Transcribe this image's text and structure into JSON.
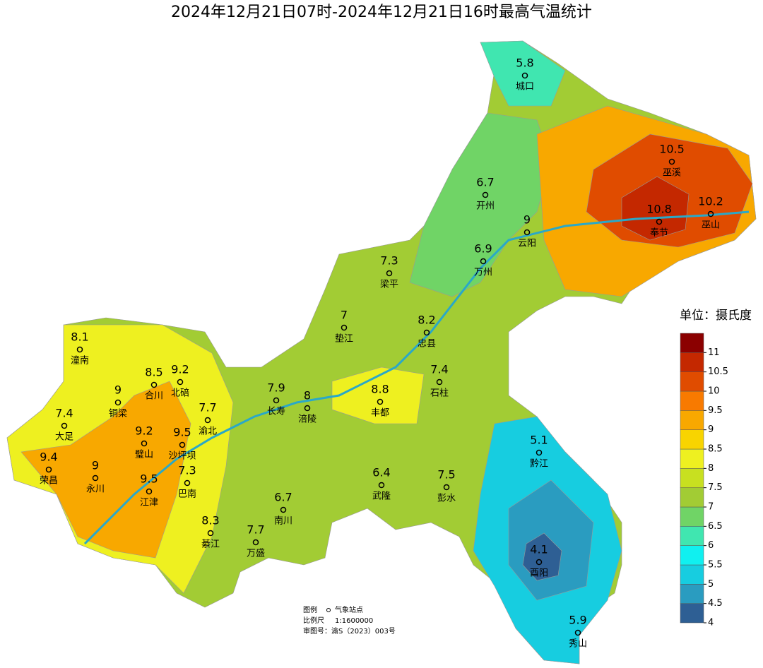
{
  "title": "2024年12月21日07时-2024年12月21日16时最高气温统计",
  "stations": [
    {
      "name": "城口",
      "value": 5.8
    },
    {
      "name": "巫溪",
      "value": 10.5
    },
    {
      "name": "开州",
      "value": 6.7
    },
    {
      "name": "云阳",
      "value": 9
    },
    {
      "name": "奉节",
      "value": 10.8
    },
    {
      "name": "巫山",
      "value": 10.2
    },
    {
      "name": "万州",
      "value": 6.9
    },
    {
      "name": "梁平",
      "value": 7.3
    },
    {
      "name": "垫江",
      "value": 7
    },
    {
      "name": "忠县",
      "value": 8.2
    },
    {
      "name": "潼南",
      "value": 8.1
    },
    {
      "name": "合川",
      "value": 8.5
    },
    {
      "name": "石柱",
      "value": 7.4
    },
    {
      "name": "北碚",
      "value": 9.2
    },
    {
      "name": "铜梁",
      "value": 9
    },
    {
      "name": "长寿",
      "value": 7.9
    },
    {
      "name": "渝北",
      "value": 7.7
    },
    {
      "name": "大足",
      "value": 7.4
    },
    {
      "name": "涪陵",
      "value": 8
    },
    {
      "name": "丰都",
      "value": 8.8
    },
    {
      "name": "璧山",
      "value": 9.2
    },
    {
      "name": "沙坪坝",
      "value": 9.5
    },
    {
      "name": "黔江",
      "value": 5.1
    },
    {
      "name": "荣昌",
      "value": 9.4
    },
    {
      "name": "永川",
      "value": 9
    },
    {
      "name": "巴南",
      "value": 7.3
    },
    {
      "name": "武隆",
      "value": 6.4
    },
    {
      "name": "彭水",
      "value": 7.5
    },
    {
      "name": "江津",
      "value": 9.5
    },
    {
      "name": "南川",
      "value": 6.7
    },
    {
      "name": "綦江",
      "value": 8.3
    },
    {
      "name": "万盛",
      "value": 7.7
    },
    {
      "name": "酉阳",
      "value": 4.1
    },
    {
      "name": "秀山",
      "value": 5.9
    }
  ],
  "legend": {
    "title": "单位：摄氏度",
    "ticks": [
      4,
      4.5,
      5,
      5.5,
      6,
      6.5,
      7,
      7.5,
      8,
      8.5,
      9,
      9.5,
      10,
      10.5,
      11
    ],
    "colors": [
      "#2e5f94",
      "#2a9cc0",
      "#17cde0",
      "#10f0f0",
      "#40e6b0",
      "#70d466",
      "#a2cc34",
      "#c8e020",
      "#eef020",
      "#f8d400",
      "#f8a800",
      "#f87a00",
      "#e04c00",
      "#c42800",
      "#8b0000"
    ]
  },
  "notes": {
    "legend_label": "图例",
    "station_label": "气象站点",
    "scale_label": "比例尺",
    "scale": "1:1600000",
    "approval": "审图号：渝S（2023）003号"
  }
}
